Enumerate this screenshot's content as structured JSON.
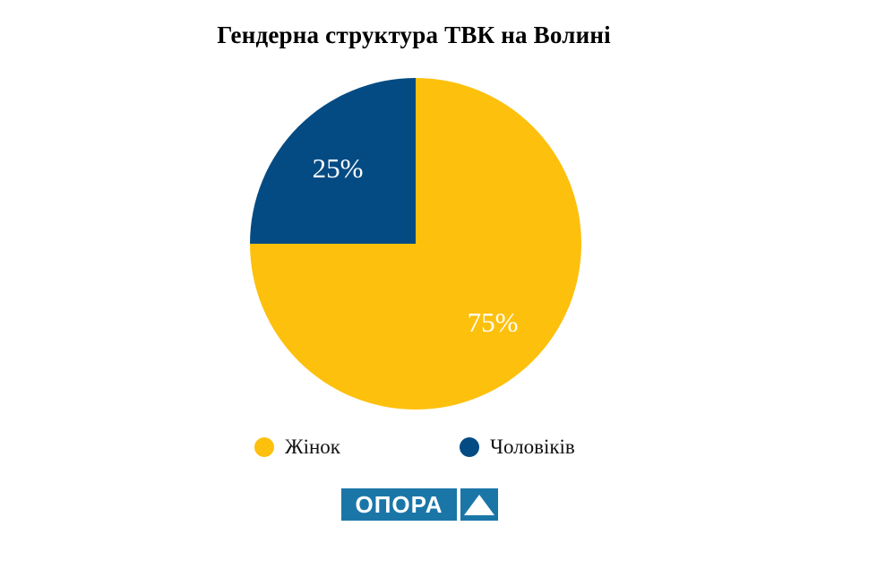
{
  "chart_data": {
    "type": "pie",
    "title": "Гендерна структура ТВК на Волині",
    "unit": "%",
    "slices": [
      {
        "key": "women",
        "label": "Жінок",
        "value": 75,
        "display": "75%",
        "color": "#FDC00D"
      },
      {
        "key": "men",
        "label": "Чоловіків",
        "value": 25,
        "display": "25%",
        "color": "#054B83"
      }
    ],
    "start_angle_deg": 0,
    "direction": "clockwise",
    "slice_label_color": "#FFFFFF",
    "legend_position": "bottom",
    "background": "#FFFFFF"
  },
  "legend": {
    "items": [
      {
        "label": "Жінок",
        "color": "#FDC00D"
      },
      {
        "label": "Чоловіків",
        "color": "#054B83"
      }
    ]
  },
  "logo": {
    "text": "ОПОРА",
    "icon": "triangle-up",
    "background": "#1B76A8",
    "foreground": "#FFFFFF"
  }
}
